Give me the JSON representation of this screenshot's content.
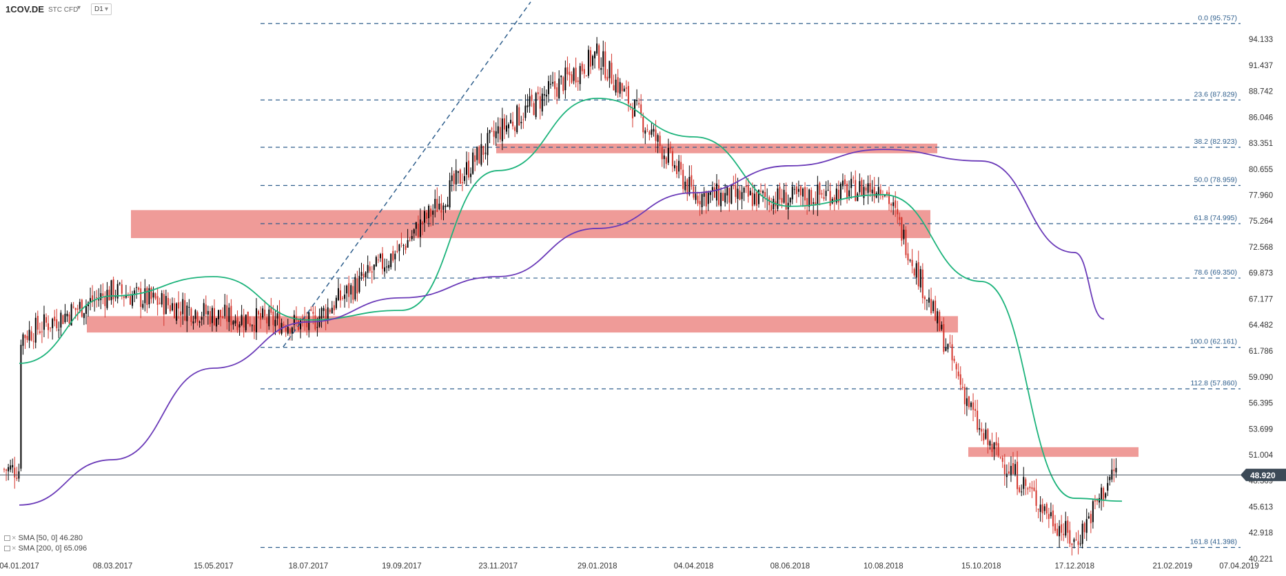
{
  "header": {
    "symbol": "1COV.DE",
    "instrument_type": "STC CFD",
    "timeframe": "D1"
  },
  "indicators": [
    {
      "label": "SMA [50, 0]",
      "value": "46.280",
      "color": "#1cb37b"
    },
    {
      "label": "SMA [200, 0]",
      "value": "65.096",
      "color": "#6a3ab8"
    }
  ],
  "colors": {
    "up": "#000000",
    "down": "#d4342b",
    "sma50": "#1cb37b",
    "sma200": "#6a3ab8",
    "zone": "#ec8a86",
    "fib": "#2e5e8c",
    "price_tag": "#3c4a57"
  },
  "chart_data": {
    "type": "candlestick",
    "y_axis_ticks": [
      "94.133",
      "91.437",
      "88.742",
      "86.046",
      "83.351",
      "80.655",
      "77.960",
      "75.264",
      "72.568",
      "69.873",
      "67.177",
      "64.482",
      "61.786",
      "59.090",
      "56.395",
      "53.699",
      "51.004",
      "48.309",
      "45.613",
      "42.918",
      "40.221"
    ],
    "x_axis_ticks": [
      "04.01.2017",
      "08.03.2017",
      "15.05.2017",
      "18.07.2017",
      "19.09.2017",
      "23.11.2017",
      "29.01.2018",
      "04.04.2018",
      "08.06.2018",
      "10.08.2018",
      "15.10.2018",
      "17.12.2018",
      "21.02.2019",
      "07.04.2019"
    ],
    "ylim": [
      40.221,
      96.5
    ],
    "last_price": "48.920",
    "fibonacci_levels": [
      {
        "label": "0.0 (95.757)",
        "value": 95.757
      },
      {
        "label": "23.6 (87.829)",
        "value": 87.829
      },
      {
        "label": "38.2 (82.923)",
        "value": 82.923
      },
      {
        "label": "50.0 (78.959)",
        "value": 78.959
      },
      {
        "label": "61.8 (74.995)",
        "value": 74.995
      },
      {
        "label": "78.6 (69.350)",
        "value": 69.35
      },
      {
        "label": "100.0 (62.161)",
        "value": 62.161
      },
      {
        "label": "112.8 (57.860)",
        "value": 57.86
      },
      {
        "label": "161.8 (41.398)",
        "value": 41.398
      }
    ],
    "resistance_zones": [
      {
        "from": "23.11.2017",
        "to": "15.08.2018",
        "low": 82.3,
        "high": 83.3
      },
      {
        "from": "12.02.2017",
        "to": "25.09.2018",
        "low": 73.5,
        "high": 76.4
      },
      {
        "from": "05.02.2017",
        "to": "28.09.2018",
        "low": 63.7,
        "high": 65.4
      },
      {
        "from": "12.10.2018",
        "to": "18.02.2019",
        "low": 50.8,
        "high": 51.8
      }
    ],
    "trendline": {
      "from": [
        "01.07.2017",
        62.2
      ],
      "to": [
        "15.12.2017",
        96.0
      ]
    },
    "series": [
      {
        "name": "Close",
        "dates": [
          "04.01.2017",
          "08.03.2017",
          "15.05.2017",
          "18.07.2017",
          "19.09.2017",
          "23.11.2017",
          "29.01.2018",
          "04.04.2018",
          "08.06.2018",
          "10.08.2018",
          "15.10.2018",
          "17.12.2018"
        ],
        "anchors": [
          63.2,
          68.0,
          65.5,
          64.5,
          72.5,
          84.5,
          92.5,
          78.0,
          77.5,
          79.0,
          53.0,
          41.8
        ]
      },
      {
        "name": "SMA [50, 0]",
        "dates": [
          "04.01.2017",
          "08.03.2017",
          "15.05.2017",
          "18.07.2017",
          "19.09.2017",
          "23.11.2017",
          "29.01.2018",
          "04.04.2018",
          "08.06.2018",
          "10.08.2018",
          "15.10.2018",
          "17.12.2018"
        ],
        "anchors": [
          60.5,
          67.5,
          69.5,
          65.0,
          66.0,
          80.5,
          88.0,
          84.0,
          76.8,
          78.0,
          69.0,
          46.5
        ]
      },
      {
        "name": "SMA [200, 0]",
        "dates": [
          "04.01.2017",
          "08.03.2017",
          "15.05.2017",
          "18.07.2017",
          "19.09.2017",
          "23.11.2017",
          "29.01.2018",
          "04.04.2018",
          "08.06.2018",
          "10.08.2018",
          "15.10.2018",
          "17.12.2018"
        ],
        "anchors": [
          45.8,
          50.5,
          60.0,
          64.8,
          67.3,
          69.5,
          74.5,
          78.2,
          81.0,
          82.7,
          81.5,
          72.0
        ]
      }
    ]
  }
}
